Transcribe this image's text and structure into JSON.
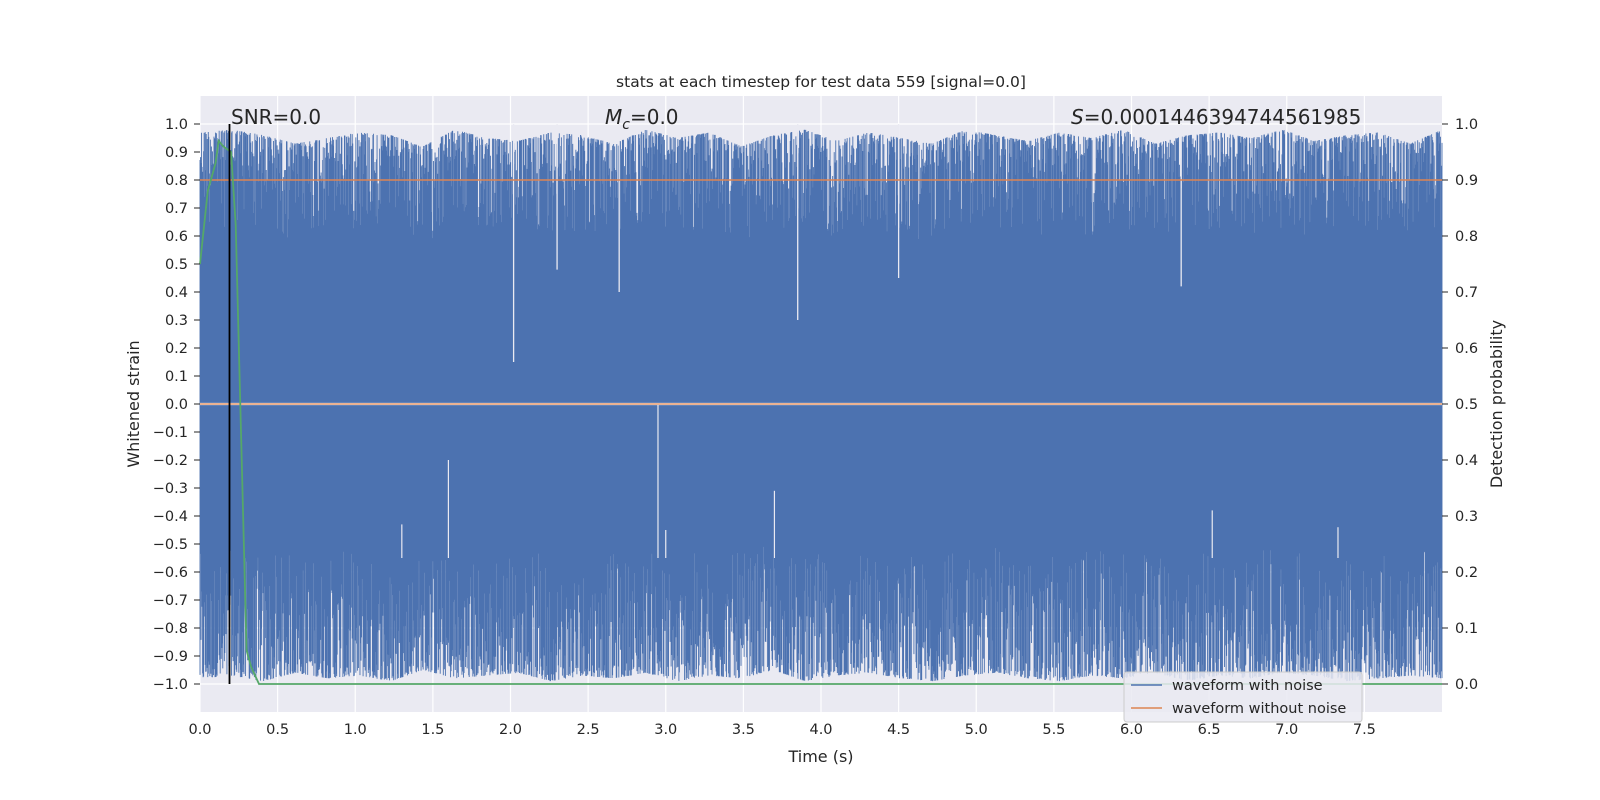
{
  "chart_data": {
    "type": "line",
    "title": "stats at each timestep for test data 559 [signal=0.0]",
    "xlabel": "Time (s)",
    "ylabel_left": "Whitened strain",
    "ylabel_right": "Detection probability",
    "xlim": [
      0.0,
      8.0
    ],
    "ylim_left": [
      -1.1,
      1.1
    ],
    "ylim_right": [
      -0.05,
      1.05
    ],
    "x_ticks": [
      "0.0",
      "0.5",
      "1.0",
      "1.5",
      "2.0",
      "2.5",
      "3.0",
      "3.5",
      "4.0",
      "4.5",
      "5.0",
      "5.5",
      "6.0",
      "6.5",
      "7.0",
      "7.5"
    ],
    "y_ticks_left": [
      "1.0",
      "0.9",
      "0.8",
      "0.7",
      "0.6",
      "0.5",
      "0.4",
      "0.3",
      "0.2",
      "0.1",
      "0.0",
      "−0.1",
      "−0.2",
      "−0.3",
      "−0.4",
      "−0.5",
      "−0.6",
      "−0.7",
      "−0.8",
      "−0.9",
      "−1.0"
    ],
    "y_ticks_right": [
      "1.0",
      "0.9",
      "0.8",
      "0.7",
      "0.6",
      "0.5",
      "0.4",
      "0.3",
      "0.2",
      "0.1",
      "0.0"
    ],
    "grid": true,
    "legend_position": "lower-right",
    "annotations": {
      "snr": "SNR=0.0",
      "mc_symbol": "M",
      "mc_sub": "c",
      "mc_value": "=0.0",
      "s_symbol": "S",
      "s_value": "=0.0001446394744561985"
    },
    "series": [
      {
        "name": "waveform with noise",
        "axis": "left",
        "color": "#4c72b0",
        "x_range": [
          0.0,
          8.0
        ],
        "envelope": "dense noise oscillating between about -1.0 and 1.0 over the whole range",
        "upper_envelope": [
          0.97,
          0.98,
          0.96,
          0.93,
          0.95,
          0.97,
          0.96,
          0.92,
          0.98,
          0.95,
          0.94,
          0.97,
          0.96,
          0.93,
          0.98,
          0.95,
          0.97,
          0.92,
          0.96,
          0.98,
          0.94,
          0.97,
          0.95,
          0.93,
          0.98,
          0.96,
          0.94,
          0.97,
          0.95,
          0.98,
          0.93,
          0.96,
          0.97,
          0.95,
          0.98,
          0.94,
          0.96,
          0.97,
          0.93,
          0.98
        ],
        "lower_envelope": [
          -0.98,
          -0.97,
          -0.99,
          -0.96,
          -0.98,
          -0.97,
          -0.99,
          -0.95,
          -0.98,
          -0.97,
          -0.96,
          -0.99,
          -0.97,
          -0.98,
          -0.96,
          -0.99,
          -0.97,
          -0.98,
          -0.95,
          -0.99,
          -0.97,
          -0.96,
          -0.98,
          -0.99,
          -0.97,
          -0.96,
          -0.98,
          -0.99,
          -0.97,
          -0.98,
          -0.96,
          -0.99,
          -0.97,
          -0.98,
          -0.96,
          -0.97,
          -0.99,
          -0.98,
          -0.97,
          -0.98
        ],
        "dips": [
          [
            2.02,
            0.15
          ],
          [
            2.7,
            0.4
          ],
          [
            3.85,
            0.3
          ],
          [
            4.5,
            0.45
          ],
          [
            6.32,
            0.42
          ],
          [
            2.3,
            0.48
          ]
        ],
        "spikes": [
          [
            2.95,
            0.0
          ],
          [
            1.6,
            -0.2
          ],
          [
            3.7,
            -0.31
          ],
          [
            6.52,
            -0.38
          ],
          [
            3.0,
            -0.45
          ],
          [
            1.3,
            -0.43
          ],
          [
            7.33,
            -0.44
          ]
        ]
      },
      {
        "name": "waveform without noise",
        "axis": "left",
        "color": "#dd8452",
        "x": [
          0.0,
          8.0
        ],
        "y": [
          0.0,
          0.0
        ]
      },
      {
        "name": "",
        "axis": "right",
        "color": "#dd8452",
        "kind": "threshold",
        "x": [
          0.0,
          8.0
        ],
        "y": [
          0.9,
          0.9
        ]
      },
      {
        "name": "",
        "axis": "right",
        "color": "#55a868",
        "x": [
          0.0,
          0.05,
          0.1,
          0.12,
          0.15,
          0.2,
          0.23,
          0.3,
          0.33,
          0.38,
          1.0,
          2.0,
          3.0,
          4.0,
          5.0,
          6.0,
          7.0,
          8.0
        ],
        "y": [
          0.75,
          0.88,
          0.93,
          0.97,
          0.96,
          0.95,
          0.82,
          0.06,
          0.03,
          0.0,
          0.0,
          0.0,
          0.0,
          0.0,
          0.0,
          0.0,
          0.0,
          0.0
        ]
      }
    ],
    "vlines": [
      {
        "x": 0.19,
        "color": "#000000",
        "y_from": -1.0,
        "y_to": 1.0
      }
    ]
  }
}
